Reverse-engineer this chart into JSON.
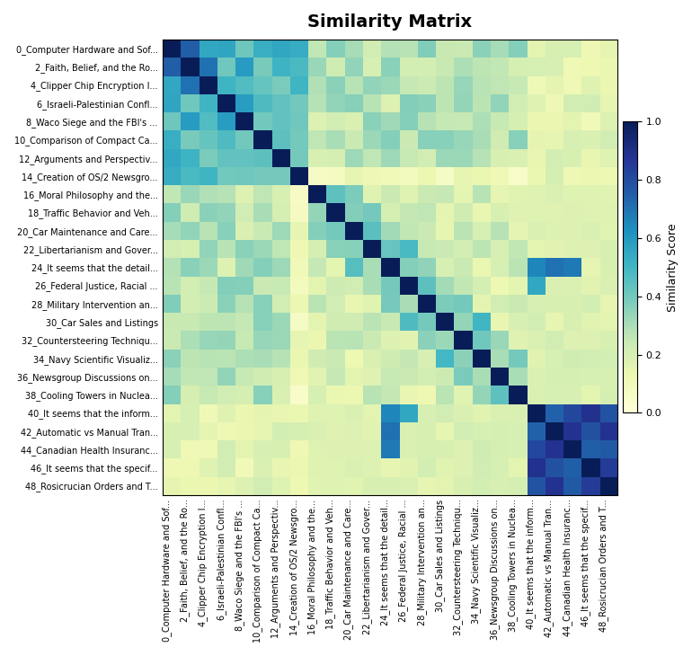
{
  "title": "Similarity Matrix",
  "colorbar_label": "Similarity Score",
  "labels": [
    "0_Computer Hardware and Sof...",
    "2_Faith, Belief, and the Ro...",
    "4_Clipper Chip Encryption I...",
    "6_Israeli-Palestinian Confl...",
    "8_Waco Siege and the FBI's ...",
    "10_Comparison of Compact Ca...",
    "12_Arguments and Perspectiv...",
    "14_Creation of OS/2 Newsgro...",
    "16_Moral Philosophy and the...",
    "18_Traffic Behavior and Veh...",
    "20_Car Maintenance and Care...",
    "22_Libertarianism and Gover...",
    "24_It seems that the detail...",
    "26_Federal Justice, Racial ...",
    "28_Military Intervention an...",
    "30_Car Sales and Listings",
    "32_Countersteering Techniqu...",
    "34_Navy Scientific Visualiz...",
    "36_Newsgroup Discussions on...",
    "38_Cooling Towers in Nuclea...",
    "40_It seems that the inform...",
    "42_Automatic vs Manual Tran...",
    "44_Canadian Health Insuranc...",
    "46_It seems that the specif...",
    "48_Rosicrucian Orders and T..."
  ],
  "colormap": "YlGnBu",
  "vmin": 0.0,
  "vmax": 1.0,
  "figsize": [
    7.7,
    7.3
  ],
  "dpi": 100,
  "title_fontsize": 14,
  "tick_fontsize": 7,
  "colorbar_fontsize": 9,
  "colorbar_tick_fontsize": 8
}
